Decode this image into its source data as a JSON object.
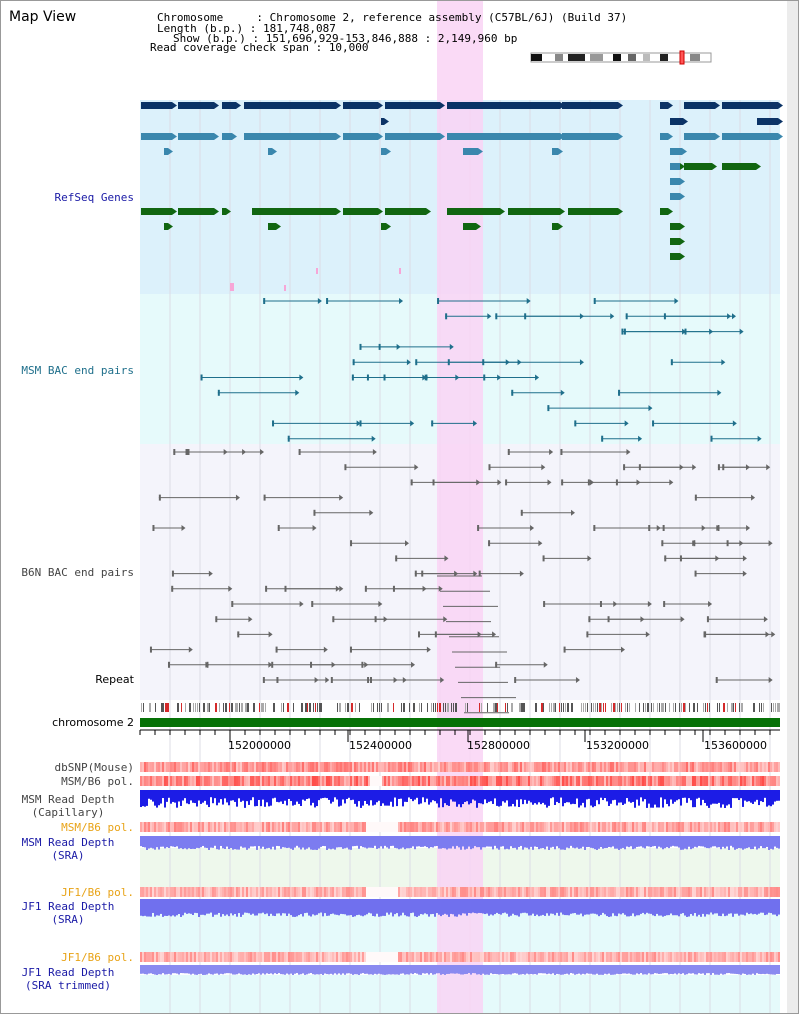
{
  "view_title": "Map View",
  "info": {
    "chromosome_label": "Chromosome     : ",
    "chromosome_value": "Chromosome 2, reference assembly (C57BL/6J) (Build 37)",
    "length_label": "Length (b.p.) : ",
    "length_value": "181,748,087",
    "show_label": "Show (b.p.) : ",
    "show_value": "151,696,929-153,846,888 : 2,149,960 bp",
    "coverage_label": "Read coverage check span : ",
    "coverage_value": "10,000"
  },
  "tracks": {
    "refseq": "RefSeq Genes",
    "msm_bac": "MSM BAC end pairs",
    "b6n_bac": "B6N BAC end pairs",
    "repeat": "Repeat",
    "chromosome": "chromosome 2",
    "dbsnp": "dbSNP(Mouse)",
    "msm_b6_pol": "MSM/B6 pol.",
    "msm_read_depth_cap_1": "MSM Read Depth",
    "msm_read_depth_cap_2": "(Capillary)",
    "msm_b6_pol_sra": "MSM/B6 pol.",
    "msm_read_depth_sra_1": "MSM Read Depth",
    "msm_read_depth_sra_2": "(SRA)",
    "jf1_b6_pol": "JF1/B6 pol.",
    "jf1_read_depth_sra_1": "JF1 Read Depth",
    "jf1_read_depth_sra_2": "(SRA)",
    "jf1_b6_pol_2": "JF1/B6 pol.",
    "jf1_read_depth_trim_1": "JF1 Read Depth",
    "jf1_read_depth_trim_2": "(SRA trimmed)"
  },
  "axis_ticks": [
    "152000000",
    "152400000",
    "152800000",
    "153200000",
    "153600000"
  ],
  "colors": {
    "refseq_dark": "#0b3366",
    "refseq_mid": "#3a87ad",
    "refseq_green": "#116611",
    "msm_line": "#1f6f8b",
    "b6n_line": "#666666",
    "highlight": "#f9d4f4",
    "chromosome_bar": "#067106",
    "label_blue": "#1a1aa6",
    "label_teal": "#1f6f8b",
    "label_orange": "#e8a317"
  }
}
